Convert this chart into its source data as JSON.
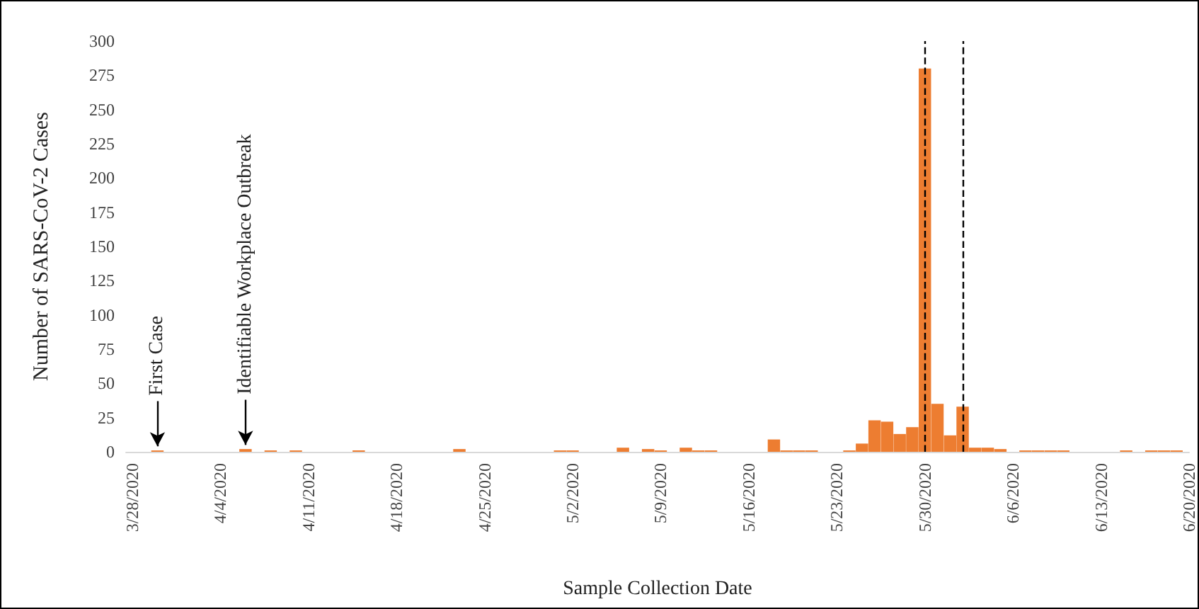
{
  "chart_data": {
    "type": "bar",
    "xlabel": "Sample Collection Date",
    "ylabel": "Number of SARS-CoV-2 Cases",
    "color": "#ed7d31",
    "x": [
      "2020-03-30",
      "2020-04-06",
      "2020-04-08",
      "2020-04-10",
      "2020-04-15",
      "2020-04-23",
      "2020-05-01",
      "2020-05-02",
      "2020-05-06",
      "2020-05-08",
      "2020-05-09",
      "2020-05-11",
      "2020-05-12",
      "2020-05-13",
      "2020-05-18",
      "2020-05-19",
      "2020-05-20",
      "2020-05-21",
      "2020-05-24",
      "2020-05-25",
      "2020-05-26",
      "2020-05-27",
      "2020-05-28",
      "2020-05-29",
      "2020-05-30",
      "2020-05-31",
      "2020-06-01",
      "2020-06-02",
      "2020-06-03",
      "2020-06-04",
      "2020-06-05",
      "2020-06-07",
      "2020-06-08",
      "2020-06-09",
      "2020-06-10",
      "2020-06-15",
      "2020-06-17",
      "2020-06-18",
      "2020-06-19"
    ],
    "values": [
      1,
      2,
      1,
      1,
      1,
      2,
      1,
      1,
      3,
      2,
      1,
      3,
      1,
      1,
      9,
      1,
      1,
      1,
      1,
      6,
      23,
      22,
      13,
      18,
      280,
      35,
      12,
      33,
      3,
      3,
      2,
      1,
      1,
      1,
      1,
      1,
      1,
      1,
      1
    ],
    "xlim": [
      "2020-03-27T12:00",
      "2020-06-20"
    ],
    "xticks": [
      {
        "value": "2020-03-28",
        "label": "3/28/2020"
      },
      {
        "value": "2020-04-04",
        "label": "4/4/2020"
      },
      {
        "value": "2020-04-11",
        "label": "4/11/2020"
      },
      {
        "value": "2020-04-18",
        "label": "4/18/2020"
      },
      {
        "value": "2020-04-25",
        "label": "4/25/2020"
      },
      {
        "value": "2020-05-02",
        "label": "5/2/2020"
      },
      {
        "value": "2020-05-09",
        "label": "5/9/2020"
      },
      {
        "value": "2020-05-16",
        "label": "5/16/2020"
      },
      {
        "value": "2020-05-23",
        "label": "5/23/2020"
      },
      {
        "value": "2020-05-30",
        "label": "5/30/2020"
      },
      {
        "value": "2020-06-06",
        "label": "6/6/2020"
      },
      {
        "value": "2020-06-13",
        "label": "6/13/2020"
      },
      {
        "value": "2020-06-20",
        "label": "6/20/2020"
      }
    ],
    "ylim": [
      0,
      300
    ],
    "yticks": [
      0,
      25,
      50,
      75,
      100,
      125,
      150,
      175,
      200,
      225,
      250,
      275,
      300
    ],
    "grid": false,
    "ref_lines": [
      {
        "axis": "x",
        "value": "2020-05-30",
        "color": "#000000",
        "line_style": "dashed"
      },
      {
        "axis": "x",
        "value": "2020-06-02",
        "color": "#000000",
        "line_style": "dashed"
      }
    ],
    "annotations": [
      {
        "text": "First Case",
        "x": "2020-03-30",
        "y": 1
      },
      {
        "text": "Identifiable Workplace Outbreak",
        "x": "2020-04-06",
        "y": 2
      }
    ]
  }
}
